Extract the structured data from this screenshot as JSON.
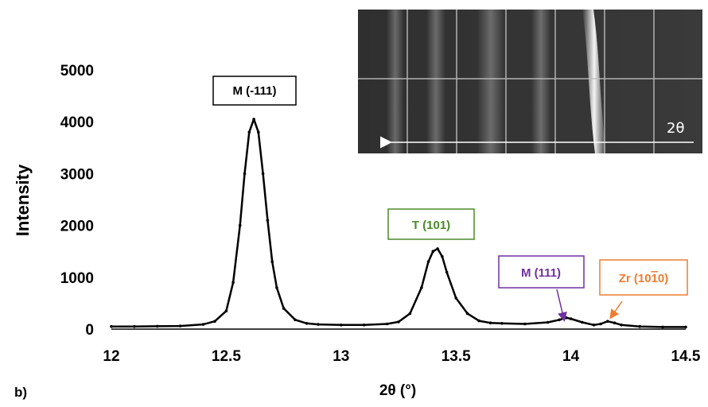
{
  "panel_label": "b)",
  "chart_data": {
    "type": "line",
    "xlabel": "2θ (°)",
    "ylabel": "Intensity",
    "xlim": [
      12,
      14.5
    ],
    "ylim": [
      0,
      5000
    ],
    "xticks": [
      "12",
      "12.5",
      "13",
      "13.5",
      "14",
      "14.5"
    ],
    "yticks": [
      "0",
      "1000",
      "2000",
      "3000",
      "4000",
      "5000"
    ],
    "grid": false,
    "legend": "none",
    "series": [
      {
        "x": [
          12.0,
          12.1,
          12.2,
          12.3,
          12.4,
          12.45,
          12.5,
          12.53,
          12.56,
          12.58,
          12.6,
          12.62,
          12.64,
          12.66,
          12.68,
          12.7,
          12.72,
          12.75,
          12.8,
          12.85,
          12.9,
          13.0,
          13.1,
          13.2,
          13.25,
          13.3,
          13.35,
          13.38,
          13.4,
          13.42,
          13.44,
          13.46,
          13.5,
          13.55,
          13.6,
          13.65,
          13.7,
          13.8,
          13.9,
          13.95,
          13.98,
          14.0,
          14.05,
          14.1,
          14.13,
          14.16,
          14.19,
          14.22,
          14.3,
          14.4,
          14.5
        ],
        "y": [
          50,
          50,
          55,
          60,
          90,
          150,
          350,
          900,
          2000,
          3000,
          3800,
          4050,
          3800,
          3000,
          2100,
          1300,
          800,
          400,
          180,
          110,
          90,
          80,
          80,
          100,
          140,
          300,
          800,
          1300,
          1500,
          1550,
          1400,
          1100,
          600,
          300,
          160,
          120,
          110,
          100,
          130,
          180,
          220,
          200,
          130,
          80,
          100,
          150,
          120,
          80,
          50,
          40,
          40
        ]
      }
    ],
    "annotations": [
      {
        "text": "M (-111)",
        "color": "#000000",
        "x": 12.62,
        "y": 4050
      },
      {
        "text": "T (101)",
        "color": "#4a8a2a",
        "x": 13.42,
        "y": 1550
      },
      {
        "text": "M (111)",
        "color": "#7030a0",
        "x": 13.98,
        "y": 220
      },
      {
        "text": "Zr (10",
        "text_bar": "1",
        "text_end": "0)",
        "color": "#ed7d31",
        "x": 14.16,
        "y": 150
      }
    ]
  },
  "inset": {
    "label": "2θ",
    "description_colors": {
      "background": "#2d2d2d",
      "grid": "#bfbfbf"
    }
  }
}
